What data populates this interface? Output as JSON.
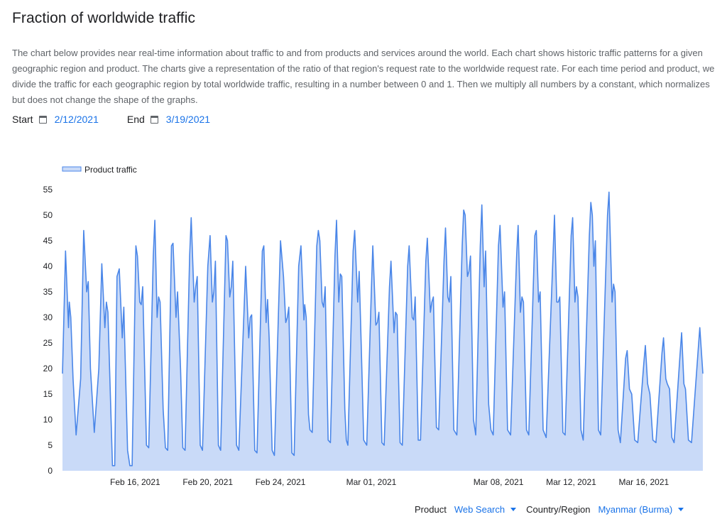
{
  "page": {
    "title": "Fraction of worldwide traffic",
    "description": "The chart below provides near real-time information about traffic to and from products and services around the world. Each chart shows historic traffic patterns for a given geographic region and product. The charts give a representation of the ratio of that region's request rate to the worldwide request rate. For each time period and product, we divide the traffic for each geographic region by total worldwide traffic, resulting in a number between 0 and 1. Then we multiply all numbers by a constant, which normalizes but does not change the shape of the graphs."
  },
  "date_range": {
    "start_label": "Start",
    "start_value": "2/12/2021",
    "end_label": "End",
    "end_value": "3/19/2021"
  },
  "selectors": {
    "product_label": "Product",
    "product_value": "Web Search",
    "region_label": "Country/Region",
    "region_value": "Myanmar (Burma)"
  },
  "colors": {
    "line": "#4a86e8",
    "fill": "#c9daf8",
    "link": "#1a73e8"
  },
  "chart_data": {
    "type": "area",
    "title": "",
    "xlabel": "",
    "ylabel": "",
    "x_start": "Feb 12, 2021",
    "x_end": "Mar 19, 2021",
    "ylim": [
      0,
      55
    ],
    "yticks": [
      0,
      5,
      10,
      15,
      20,
      25,
      30,
      35,
      40,
      45,
      50,
      55
    ],
    "xticks": [
      {
        "date": "2021-02-16",
        "label": "Feb 16, 2021"
      },
      {
        "date": "2021-02-20",
        "label": "Feb 20, 2021"
      },
      {
        "date": "2021-02-24",
        "label": "Feb 24, 2021"
      },
      {
        "date": "2021-03-01",
        "label": "Mar 01, 2021"
      },
      {
        "date": "2021-03-08",
        "label": "Mar 08, 2021"
      },
      {
        "date": "2021-03-12",
        "label": "Mar 12, 2021"
      },
      {
        "date": "2021-03-16",
        "label": "Mar 16, 2021"
      }
    ],
    "legend": "top-left",
    "grid": false,
    "series": [
      {
        "name": "Product traffic",
        "points": [
          [
            "2021-02-12T00:00",
            19
          ],
          [
            "2021-02-12T04:00",
            43
          ],
          [
            "2021-02-12T08:00",
            28
          ],
          [
            "2021-02-12T09:00",
            33
          ],
          [
            "2021-02-12T11:00",
            30
          ],
          [
            "2021-02-12T14:00",
            18
          ],
          [
            "2021-02-12T18:00",
            7
          ],
          [
            "2021-02-13T00:00",
            18
          ],
          [
            "2021-02-13T04:00",
            47
          ],
          [
            "2021-02-13T08:00",
            35
          ],
          [
            "2021-02-13T10:00",
            37
          ],
          [
            "2021-02-13T13:00",
            20
          ],
          [
            "2021-02-13T18:00",
            7.5
          ],
          [
            "2021-02-14T00:00",
            20
          ],
          [
            "2021-02-14T04:00",
            40.5
          ],
          [
            "2021-02-14T08:00",
            28
          ],
          [
            "2021-02-14T10:00",
            33
          ],
          [
            "2021-02-14T12:00",
            31
          ],
          [
            "2021-02-14T18:00",
            1
          ],
          [
            "2021-02-14T21:00",
            1
          ],
          [
            "2021-02-15T00:00",
            38
          ],
          [
            "2021-02-15T03:00",
            39.5
          ],
          [
            "2021-02-15T07:00",
            26
          ],
          [
            "2021-02-15T09:00",
            32
          ],
          [
            "2021-02-15T14:00",
            4
          ],
          [
            "2021-02-15T17:00",
            1
          ],
          [
            "2021-02-15T20:00",
            1
          ],
          [
            "2021-02-16T01:00",
            44
          ],
          [
            "2021-02-16T03:00",
            42
          ],
          [
            "2021-02-16T06:00",
            33
          ],
          [
            "2021-02-16T08:00",
            32.5
          ],
          [
            "2021-02-16T10:00",
            36
          ],
          [
            "2021-02-16T15:00",
            5
          ],
          [
            "2021-02-16T18:00",
            4.5
          ],
          [
            "2021-02-17T00:00",
            42
          ],
          [
            "2021-02-17T02:00",
            49
          ],
          [
            "2021-02-17T05:00",
            30
          ],
          [
            "2021-02-17T07:00",
            34
          ],
          [
            "2021-02-17T09:00",
            33
          ],
          [
            "2021-02-17T13:00",
            12
          ],
          [
            "2021-02-17T16:00",
            4.5
          ],
          [
            "2021-02-17T19:00",
            4
          ],
          [
            "2021-02-18T00:00",
            44
          ],
          [
            "2021-02-18T02:00",
            44.5
          ],
          [
            "2021-02-18T06:00",
            30
          ],
          [
            "2021-02-18T08:00",
            35
          ],
          [
            "2021-02-18T12:00",
            20
          ],
          [
            "2021-02-18T15:00",
            4.5
          ],
          [
            "2021-02-18T18:00",
            4
          ],
          [
            "2021-02-19T00:00",
            42
          ],
          [
            "2021-02-19T02:00",
            49.5
          ],
          [
            "2021-02-19T06:00",
            33
          ],
          [
            "2021-02-19T08:00",
            36
          ],
          [
            "2021-02-19T10:00",
            38
          ],
          [
            "2021-02-19T14:00",
            5
          ],
          [
            "2021-02-19T17:00",
            4
          ],
          [
            "2021-02-20T00:00",
            40
          ],
          [
            "2021-02-20T03:00",
            46
          ],
          [
            "2021-02-20T06:00",
            33
          ],
          [
            "2021-02-20T08:00",
            35
          ],
          [
            "2021-02-20T10:00",
            41
          ],
          [
            "2021-02-20T14:00",
            5
          ],
          [
            "2021-02-20T17:00",
            4
          ],
          [
            "2021-02-21T00:00",
            46
          ],
          [
            "2021-02-21T02:00",
            45
          ],
          [
            "2021-02-21T05:00",
            34
          ],
          [
            "2021-02-21T07:00",
            36
          ],
          [
            "2021-02-21T09:00",
            41
          ],
          [
            "2021-02-21T14:00",
            5
          ],
          [
            "2021-02-21T17:00",
            4
          ],
          [
            "2021-02-22T00:00",
            32
          ],
          [
            "2021-02-22T02:00",
            40
          ],
          [
            "2021-02-22T06:00",
            26
          ],
          [
            "2021-02-22T08:00",
            30
          ],
          [
            "2021-02-22T10:00",
            30.5
          ],
          [
            "2021-02-22T14:00",
            4
          ],
          [
            "2021-02-22T17:00",
            3.5
          ],
          [
            "2021-02-23T00:00",
            43
          ],
          [
            "2021-02-23T02:00",
            44
          ],
          [
            "2021-02-23T05:00",
            29
          ],
          [
            "2021-02-23T07:00",
            33.5
          ],
          [
            "2021-02-23T09:00",
            26
          ],
          [
            "2021-02-23T13:00",
            4
          ],
          [
            "2021-02-23T16:00",
            3
          ],
          [
            "2021-02-24T00:00",
            45
          ],
          [
            "2021-02-24T04:00",
            38
          ],
          [
            "2021-02-24T07:00",
            29
          ],
          [
            "2021-02-24T09:00",
            30
          ],
          [
            "2021-02-24T11:00",
            32
          ],
          [
            "2021-02-24T15:00",
            3.5
          ],
          [
            "2021-02-24T18:00",
            3
          ],
          [
            "2021-02-25T00:00",
            40
          ],
          [
            "2021-02-25T03:00",
            44
          ],
          [
            "2021-02-25T07:00",
            29.5
          ],
          [
            "2021-02-25T08:00",
            32.5
          ],
          [
            "2021-02-25T10:00",
            30
          ],
          [
            "2021-02-25T13:00",
            11
          ],
          [
            "2021-02-25T15:00",
            8
          ],
          [
            "2021-02-25T18:00",
            7.5
          ],
          [
            "2021-02-26T00:00",
            44
          ],
          [
            "2021-02-26T02:00",
            47
          ],
          [
            "2021-02-26T04:00",
            45
          ],
          [
            "2021-02-26T07:00",
            33
          ],
          [
            "2021-02-26T09:00",
            32
          ],
          [
            "2021-02-26T11:00",
            36
          ],
          [
            "2021-02-26T15:00",
            6
          ],
          [
            "2021-02-26T18:00",
            5.5
          ],
          [
            "2021-02-27T00:00",
            42
          ],
          [
            "2021-02-27T02:00",
            49
          ],
          [
            "2021-02-27T05:00",
            33
          ],
          [
            "2021-02-27T07:00",
            38.5
          ],
          [
            "2021-02-27T09:00",
            38
          ],
          [
            "2021-02-27T13:00",
            12
          ],
          [
            "2021-02-27T15:00",
            6
          ],
          [
            "2021-02-27T17:00",
            5
          ],
          [
            "2021-02-28T00:00",
            43
          ],
          [
            "2021-02-28T02:00",
            47
          ],
          [
            "2021-02-28T06:00",
            33
          ],
          [
            "2021-02-28T08:00",
            39
          ],
          [
            "2021-02-28T11:00",
            23
          ],
          [
            "2021-02-28T14:00",
            6
          ],
          [
            "2021-02-28T18:00",
            5
          ],
          [
            "2021-03-01T00:00",
            35
          ],
          [
            "2021-03-01T02:00",
            44
          ],
          [
            "2021-03-01T06:00",
            28.5
          ],
          [
            "2021-03-01T08:00",
            29
          ],
          [
            "2021-03-01T10:00",
            31
          ],
          [
            "2021-03-01T14:00",
            5.5
          ],
          [
            "2021-03-01T17:00",
            5
          ],
          [
            "2021-03-02T00:00",
            36
          ],
          [
            "2021-03-02T02:00",
            41
          ],
          [
            "2021-03-02T06:00",
            27
          ],
          [
            "2021-03-02T08:00",
            31
          ],
          [
            "2021-03-02T10:00",
            30.5
          ],
          [
            "2021-03-02T14:00",
            5.5
          ],
          [
            "2021-03-02T17:00",
            5
          ],
          [
            "2021-03-03T00:00",
            40
          ],
          [
            "2021-03-03T02:00",
            44
          ],
          [
            "2021-03-03T06:00",
            30
          ],
          [
            "2021-03-03T08:00",
            29.5
          ],
          [
            "2021-03-03T10:00",
            34
          ],
          [
            "2021-03-03T14:00",
            6
          ],
          [
            "2021-03-03T17:00",
            6
          ],
          [
            "2021-03-04T00:00",
            41
          ],
          [
            "2021-03-04T02:00",
            45.5
          ],
          [
            "2021-03-04T06:00",
            31
          ],
          [
            "2021-03-04T08:00",
            33
          ],
          [
            "2021-03-04T10:00",
            34
          ],
          [
            "2021-03-04T14:00",
            8.5
          ],
          [
            "2021-03-04T17:00",
            8
          ],
          [
            "2021-03-05T00:00",
            41
          ],
          [
            "2021-03-05T02:00",
            47.5
          ],
          [
            "2021-03-05T05:00",
            34
          ],
          [
            "2021-03-05T07:00",
            33
          ],
          [
            "2021-03-05T09:00",
            38
          ],
          [
            "2021-03-05T13:00",
            8
          ],
          [
            "2021-03-05T17:00",
            7
          ],
          [
            "2021-03-06T00:00",
            44
          ],
          [
            "2021-03-06T02:00",
            51
          ],
          [
            "2021-03-06T04:00",
            50
          ],
          [
            "2021-03-06T07:00",
            38
          ],
          [
            "2021-03-06T09:00",
            39
          ],
          [
            "2021-03-06T11:00",
            42
          ],
          [
            "2021-03-06T15:00",
            10
          ],
          [
            "2021-03-06T18:00",
            7
          ],
          [
            "2021-03-07T00:00",
            44
          ],
          [
            "2021-03-07T02:00",
            52
          ],
          [
            "2021-03-07T05:00",
            36
          ],
          [
            "2021-03-07T07:00",
            43
          ],
          [
            "2021-03-07T11:00",
            13
          ],
          [
            "2021-03-07T14:00",
            8
          ],
          [
            "2021-03-07T17:00",
            7
          ],
          [
            "2021-03-08T00:00",
            44
          ],
          [
            "2021-03-08T02:00",
            48
          ],
          [
            "2021-03-08T06:00",
            32
          ],
          [
            "2021-03-08T08:00",
            35
          ],
          [
            "2021-03-08T12:00",
            8
          ],
          [
            "2021-03-08T16:00",
            7
          ],
          [
            "2021-03-09T00:00",
            42
          ],
          [
            "2021-03-09T02:00",
            48
          ],
          [
            "2021-03-09T05:00",
            31
          ],
          [
            "2021-03-09T07:00",
            34
          ],
          [
            "2021-03-09T09:00",
            33
          ],
          [
            "2021-03-09T13:00",
            8
          ],
          [
            "2021-03-09T16:00",
            7
          ],
          [
            "2021-03-10T00:00",
            46
          ],
          [
            "2021-03-10T02:00",
            47
          ],
          [
            "2021-03-10T05:00",
            33
          ],
          [
            "2021-03-10T07:00",
            35
          ],
          [
            "2021-03-10T11:00",
            8
          ],
          [
            "2021-03-10T15:00",
            6.5
          ],
          [
            "2021-03-11T00:00",
            42
          ],
          [
            "2021-03-11T02:00",
            50
          ],
          [
            "2021-03-11T05:00",
            33
          ],
          [
            "2021-03-11T07:00",
            33
          ],
          [
            "2021-03-11T09:00",
            34
          ],
          [
            "2021-03-11T13:00",
            7.5
          ],
          [
            "2021-03-11T16:00",
            7
          ],
          [
            "2021-03-12T00:00",
            46
          ],
          [
            "2021-03-12T02:00",
            49.5
          ],
          [
            "2021-03-12T05:00",
            33
          ],
          [
            "2021-03-12T07:00",
            36
          ],
          [
            "2021-03-12T09:00",
            34
          ],
          [
            "2021-03-12T13:00",
            8
          ],
          [
            "2021-03-12T16:00",
            6
          ],
          [
            "2021-03-13T00:00",
            46
          ],
          [
            "2021-03-13T02:00",
            52.5
          ],
          [
            "2021-03-13T04:00",
            50
          ],
          [
            "2021-03-13T06:00",
            40
          ],
          [
            "2021-03-13T08:00",
            45
          ],
          [
            "2021-03-13T12:00",
            8
          ],
          [
            "2021-03-13T15:00",
            7
          ],
          [
            "2021-03-14T00:00",
            50
          ],
          [
            "2021-03-14T02:00",
            54.5
          ],
          [
            "2021-03-14T06:00",
            33
          ],
          [
            "2021-03-14T08:00",
            36.5
          ],
          [
            "2021-03-14T10:00",
            35
          ],
          [
            "2021-03-14T14:00",
            8
          ],
          [
            "2021-03-14T17:00",
            5.5
          ],
          [
            "2021-03-15T00:00",
            22
          ],
          [
            "2021-03-15T02:00",
            23.5
          ],
          [
            "2021-03-15T05:00",
            16
          ],
          [
            "2021-03-15T08:00",
            15
          ],
          [
            "2021-03-15T12:00",
            6
          ],
          [
            "2021-03-15T16:00",
            5.5
          ],
          [
            "2021-03-16T00:00",
            21
          ],
          [
            "2021-03-16T02:00",
            24.5
          ],
          [
            "2021-03-16T05:00",
            17
          ],
          [
            "2021-03-16T08:00",
            15
          ],
          [
            "2021-03-16T12:00",
            6
          ],
          [
            "2021-03-16T16:00",
            5.5
          ],
          [
            "2021-03-17T00:00",
            23
          ],
          [
            "2021-03-17T02:00",
            26
          ],
          [
            "2021-03-17T05:00",
            18
          ],
          [
            "2021-03-17T07:00",
            17
          ],
          [
            "2021-03-17T10:00",
            16
          ],
          [
            "2021-03-17T13:00",
            6.5
          ],
          [
            "2021-03-17T16:00",
            5.5
          ],
          [
            "2021-03-18T00:00",
            23
          ],
          [
            "2021-03-18T02:00",
            27
          ],
          [
            "2021-03-18T05:00",
            17
          ],
          [
            "2021-03-18T07:00",
            16
          ],
          [
            "2021-03-18T11:00",
            6
          ],
          [
            "2021-03-18T15:00",
            5.5
          ],
          [
            "2021-03-19T00:00",
            24
          ],
          [
            "2021-03-19T02:00",
            28
          ],
          [
            "2021-03-19T06:00",
            19
          ]
        ]
      }
    ]
  }
}
